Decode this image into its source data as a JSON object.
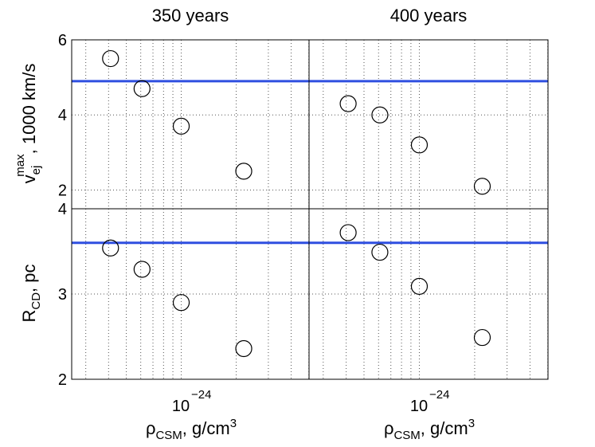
{
  "chart_data": {
    "type": "scatter",
    "layout": "2x2 panel grid, shared axes",
    "column_titles": [
      "350 years",
      "400 years"
    ],
    "x_axis": {
      "scale": "log",
      "range_log10": [
        -24.6,
        -23.3
      ],
      "tick_label_base": "10",
      "tick_label_exponent": "−24",
      "label_main": "ρ",
      "label_sub": "CSM",
      "label_rest": ", g/cm",
      "label_sup": "3"
    },
    "rows": [
      {
        "ylabel_main": "v",
        "ylabel_sub": "ej",
        "ylabel_sup": "max",
        "ylabel_rest": ", 1000 km/s",
        "ylim": [
          1.5,
          6
        ],
        "yticks": [
          "2",
          "4",
          "6"
        ],
        "reference_line": 4.9
      },
      {
        "ylabel_main": "R",
        "ylabel_sub": "CD",
        "ylabel_rest": ", pc",
        "ylim": [
          2,
          4
        ],
        "yticks": [
          "2",
          "3",
          "4"
        ],
        "reference_line": 3.6
      }
    ],
    "panels": [
      {
        "row": 0,
        "col": 0,
        "points": [
          {
            "x": 4.1e-25,
            "y": 5.5
          },
          {
            "x": 6.1e-25,
            "y": 4.7
          },
          {
            "x": 1e-24,
            "y": 3.7
          },
          {
            "x": 2.2e-24,
            "y": 2.5
          }
        ]
      },
      {
        "row": 0,
        "col": 1,
        "points": [
          {
            "x": 4.1e-25,
            "y": 4.3
          },
          {
            "x": 6.1e-25,
            "y": 4.0
          },
          {
            "x": 1e-24,
            "y": 3.2
          },
          {
            "x": 2.2e-24,
            "y": 2.1
          }
        ]
      },
      {
        "row": 1,
        "col": 0,
        "points": [
          {
            "x": 4.1e-25,
            "y": 3.54
          },
          {
            "x": 6.1e-25,
            "y": 3.29
          },
          {
            "x": 1e-24,
            "y": 2.9
          },
          {
            "x": 2.2e-24,
            "y": 2.36
          }
        ]
      },
      {
        "row": 1,
        "col": 1,
        "points": [
          {
            "x": 4.1e-25,
            "y": 3.72
          },
          {
            "x": 6.1e-25,
            "y": 3.49
          },
          {
            "x": 1e-24,
            "y": 3.09
          },
          {
            "x": 2.2e-24,
            "y": 2.49
          }
        ]
      }
    ],
    "grid": "dotted, major and minor",
    "marker": "open circle",
    "colors": {
      "reference_line": "#2f4fe0",
      "marker": "#000000",
      "grid": "#555555"
    }
  }
}
